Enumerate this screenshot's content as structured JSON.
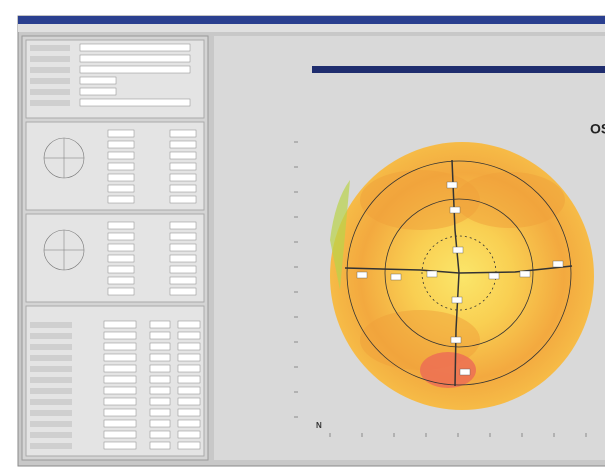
{
  "map": {
    "eye_label": "OS",
    "nasal_label": "N"
  }
}
